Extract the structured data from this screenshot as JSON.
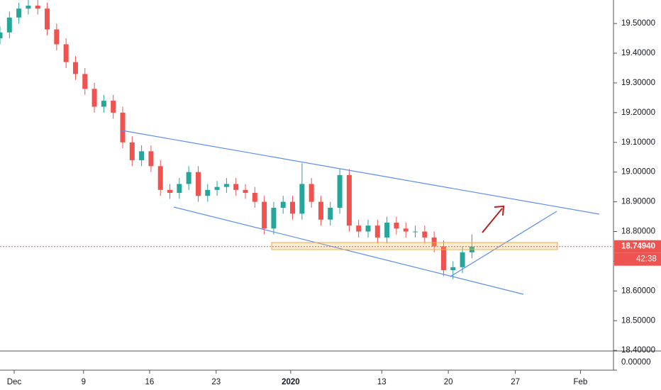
{
  "chart_data": {
    "type": "candlestick",
    "x": [
      0,
      2,
      4,
      6,
      8,
      10,
      12,
      14,
      16,
      18,
      20,
      22,
      24,
      26,
      28,
      30,
      32,
      34,
      36,
      38,
      40,
      42,
      44,
      46,
      48,
      50,
      52,
      54,
      56,
      58,
      60,
      62,
      64,
      66,
      68,
      70,
      72,
      74,
      76,
      78,
      80,
      82,
      84,
      86,
      88,
      90,
      92,
      94,
      96,
      98,
      100
    ],
    "open": [
      19.45,
      19.47,
      19.52,
      19.55,
      19.56,
      19.55,
      19.48,
      19.43,
      19.37,
      19.33,
      19.28,
      19.22,
      19.24,
      19.2,
      19.1,
      19.04,
      19.07,
      19.02,
      18.94,
      18.93,
      18.96,
      19.0,
      18.92,
      18.94,
      18.95,
      18.96,
      18.94,
      18.93,
      18.9,
      18.81,
      18.88,
      18.9,
      18.86,
      18.96,
      18.9,
      18.84,
      18.88,
      18.99,
      18.82,
      18.8,
      18.82,
      18.78,
      18.83,
      18.81,
      18.8,
      18.8,
      18.78,
      18.75,
      18.67,
      18.68,
      18.73
    ],
    "high": [
      19.49,
      19.54,
      19.57,
      19.58,
      19.58,
      19.57,
      19.5,
      19.45,
      19.39,
      19.35,
      19.3,
      19.26,
      19.26,
      19.22,
      19.12,
      19.09,
      19.09,
      19.04,
      18.96,
      18.98,
      19.02,
      19.02,
      18.96,
      18.97,
      18.98,
      18.98,
      18.96,
      18.95,
      18.92,
      18.9,
      18.92,
      18.92,
      19.03,
      18.98,
      18.92,
      18.9,
      19.01,
      19.01,
      18.84,
      18.84,
      18.84,
      18.85,
      18.85,
      18.83,
      18.82,
      18.82,
      18.8,
      18.77,
      18.7,
      18.75,
      18.79
    ],
    "low": [
      19.43,
      19.45,
      19.5,
      19.53,
      19.53,
      19.46,
      19.41,
      19.35,
      19.31,
      19.26,
      19.2,
      19.2,
      19.18,
      19.08,
      19.02,
      19.02,
      19.0,
      18.92,
      18.91,
      18.91,
      18.94,
      18.9,
      18.9,
      18.92,
      18.93,
      18.92,
      18.91,
      18.88,
      18.79,
      18.79,
      18.86,
      18.84,
      18.84,
      18.88,
      18.82,
      18.82,
      18.86,
      18.8,
      18.78,
      18.78,
      18.76,
      18.76,
      18.79,
      18.78,
      18.78,
      18.76,
      18.73,
      18.65,
      18.64,
      18.66,
      18.71
    ],
    "close": [
      19.47,
      19.52,
      19.55,
      19.56,
      19.55,
      19.48,
      19.43,
      19.37,
      19.33,
      19.28,
      19.22,
      19.24,
      19.2,
      19.1,
      19.04,
      19.07,
      19.02,
      18.94,
      18.93,
      18.96,
      19.0,
      18.92,
      18.94,
      18.95,
      18.96,
      18.94,
      18.93,
      18.9,
      18.81,
      18.88,
      18.9,
      18.86,
      18.96,
      18.9,
      18.84,
      18.88,
      18.99,
      18.82,
      18.8,
      18.82,
      18.78,
      18.83,
      18.81,
      18.8,
      18.8,
      18.78,
      18.75,
      18.67,
      18.68,
      18.73,
      18.7494
    ],
    "up_color": "#26a69a",
    "down_color": "#ef5350",
    "xlim": [
      0,
      130
    ],
    "xticks": [
      {
        "value": 3.0,
        "label": "Dec"
      },
      {
        "value": 17.7,
        "label": "9"
      },
      {
        "value": 31.7,
        "label": "16"
      },
      {
        "value": 45.8,
        "label": "23"
      },
      {
        "value": 61.6,
        "label": "2020"
      },
      {
        "value": 80.9,
        "label": "13"
      },
      {
        "value": 95.0,
        "label": "20"
      },
      {
        "value": 109.2,
        "label": "27"
      },
      {
        "value": 123.0,
        "label": "Feb"
      }
    ],
    "ylim": [
      18.398,
      19.579
    ],
    "yticks": [
      {
        "value": 18.4,
        "label": "18.40000"
      },
      {
        "value": 18.5,
        "label": "18.50000"
      },
      {
        "value": 18.6,
        "label": "18.60000"
      },
      {
        "value": 18.7,
        "label": "18.70000"
      },
      {
        "value": 18.8,
        "label": "18.80000"
      },
      {
        "value": 18.9,
        "label": "18.90000"
      },
      {
        "value": 19.0,
        "label": "19.00000"
      },
      {
        "value": 19.1,
        "label": "19.10000"
      },
      {
        "value": 19.2,
        "label": "19.20000"
      },
      {
        "value": 19.3,
        "label": "19.30000"
      },
      {
        "value": 19.4,
        "label": "19.40000"
      },
      {
        "value": 19.5,
        "label": "19.50000"
      }
    ],
    "last_price": {
      "value": 18.7494,
      "label": "18.74940"
    },
    "countdown": "42:38",
    "indicator_label": "0.00000"
  }
}
